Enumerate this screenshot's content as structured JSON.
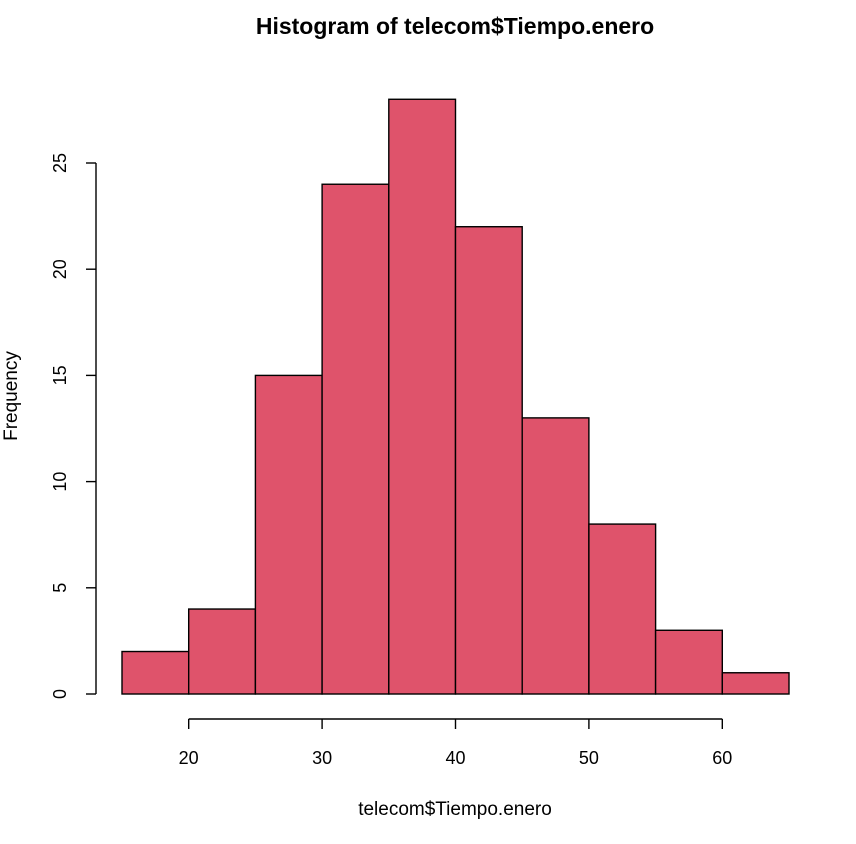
{
  "chart_data": {
    "type": "histogram",
    "title": "Histogram of telecom$Tiempo.enero",
    "xlabel": "telecom$Tiempo.enero",
    "ylabel": "Frequency",
    "bins": [
      {
        "from": 15,
        "to": 20,
        "count": 2
      },
      {
        "from": 20,
        "to": 25,
        "count": 4
      },
      {
        "from": 25,
        "to": 30,
        "count": 15
      },
      {
        "from": 30,
        "to": 35,
        "count": 24
      },
      {
        "from": 35,
        "to": 40,
        "count": 28
      },
      {
        "from": 40,
        "to": 45,
        "count": 22
      },
      {
        "from": 45,
        "to": 50,
        "count": 13
      },
      {
        "from": 50,
        "to": 55,
        "count": 8
      },
      {
        "from": 55,
        "to": 60,
        "count": 3
      },
      {
        "from": 60,
        "to": 65,
        "count": 1
      }
    ],
    "xlim": [
      15,
      65
    ],
    "ylim": [
      0,
      28
    ],
    "xticks": [
      20,
      30,
      40,
      50,
      60
    ],
    "yticks": [
      0,
      5,
      10,
      15,
      20,
      25
    ],
    "bar_color": "#DF536B",
    "grid": false
  }
}
